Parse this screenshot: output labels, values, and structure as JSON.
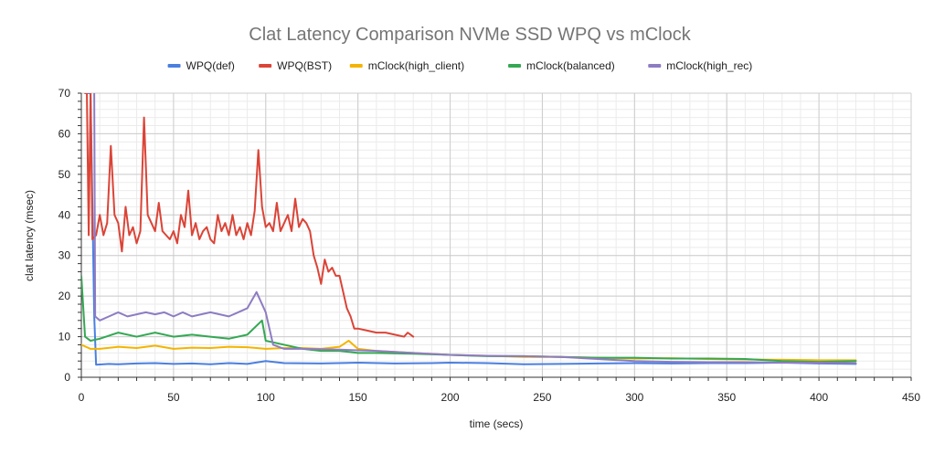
{
  "chart_data": {
    "type": "line",
    "title": "Clat Latency Comparison NVMe SSD WPQ vs mClock",
    "xlabel": "time (secs)",
    "ylabel": "clat latency (msec)",
    "xlim": [
      0,
      450
    ],
    "ylim": [
      0,
      70
    ],
    "xticks": [
      0,
      50,
      100,
      150,
      200,
      250,
      300,
      350,
      400,
      450
    ],
    "yticks": [
      0,
      10,
      20,
      30,
      40,
      50,
      60,
      70
    ],
    "grid": true,
    "legend_position": "top",
    "series": [
      {
        "name": "WPQ(def)",
        "color": "#4a7fe0",
        "points": [
          [
            3,
            70
          ],
          [
            5,
            70
          ],
          [
            7,
            15
          ],
          [
            8,
            3.1
          ],
          [
            15,
            3.3
          ],
          [
            20,
            3.2
          ],
          [
            30,
            3.4
          ],
          [
            40,
            3.5
          ],
          [
            50,
            3.3
          ],
          [
            60,
            3.4
          ],
          [
            70,
            3.2
          ],
          [
            80,
            3.5
          ],
          [
            90,
            3.3
          ],
          [
            100,
            4.0
          ],
          [
            110,
            3.5
          ],
          [
            130,
            3.4
          ],
          [
            150,
            3.6
          ],
          [
            170,
            3.4
          ],
          [
            190,
            3.5
          ],
          [
            200,
            3.6
          ],
          [
            220,
            3.5
          ],
          [
            240,
            3.2
          ],
          [
            260,
            3.3
          ],
          [
            280,
            3.4
          ],
          [
            300,
            3.5
          ],
          [
            320,
            3.4
          ],
          [
            340,
            3.5
          ],
          [
            360,
            3.5
          ],
          [
            380,
            3.6
          ],
          [
            400,
            3.4
          ],
          [
            420,
            3.3
          ]
        ]
      },
      {
        "name": "WPQ(BST)",
        "color": "#db4437",
        "points": [
          [
            2,
            70
          ],
          [
            3,
            70
          ],
          [
            4,
            35
          ],
          [
            5,
            70
          ],
          [
            6,
            34
          ],
          [
            8,
            35
          ],
          [
            10,
            40
          ],
          [
            12,
            35
          ],
          [
            14,
            38
          ],
          [
            16,
            57
          ],
          [
            18,
            40
          ],
          [
            20,
            38
          ],
          [
            22,
            31
          ],
          [
            24,
            42
          ],
          [
            26,
            35
          ],
          [
            28,
            37
          ],
          [
            30,
            33
          ],
          [
            32,
            36
          ],
          [
            34,
            64
          ],
          [
            36,
            40
          ],
          [
            38,
            38
          ],
          [
            40,
            36
          ],
          [
            42,
            43
          ],
          [
            44,
            36
          ],
          [
            46,
            35
          ],
          [
            48,
            34
          ],
          [
            50,
            36
          ],
          [
            52,
            33
          ],
          [
            54,
            40
          ],
          [
            56,
            37
          ],
          [
            58,
            46
          ],
          [
            60,
            35
          ],
          [
            62,
            38
          ],
          [
            64,
            34
          ],
          [
            66,
            36
          ],
          [
            68,
            37
          ],
          [
            70,
            34
          ],
          [
            72,
            33
          ],
          [
            74,
            40
          ],
          [
            76,
            36
          ],
          [
            78,
            38
          ],
          [
            80,
            35
          ],
          [
            82,
            40
          ],
          [
            84,
            35
          ],
          [
            86,
            37
          ],
          [
            88,
            34
          ],
          [
            90,
            38
          ],
          [
            92,
            35
          ],
          [
            94,
            41
          ],
          [
            96,
            56
          ],
          [
            98,
            42
          ],
          [
            100,
            37
          ],
          [
            102,
            38
          ],
          [
            104,
            36
          ],
          [
            106,
            43
          ],
          [
            108,
            36
          ],
          [
            110,
            38
          ],
          [
            112,
            40
          ],
          [
            114,
            36
          ],
          [
            116,
            44
          ],
          [
            118,
            37
          ],
          [
            120,
            39
          ],
          [
            122,
            38
          ],
          [
            124,
            36
          ],
          [
            126,
            30
          ],
          [
            128,
            27
          ],
          [
            130,
            23
          ],
          [
            132,
            29
          ],
          [
            134,
            26
          ],
          [
            136,
            27
          ],
          [
            138,
            25
          ],
          [
            140,
            25
          ],
          [
            142,
            21
          ],
          [
            144,
            17
          ],
          [
            146,
            15
          ],
          [
            148,
            12
          ],
          [
            150,
            12
          ],
          [
            155,
            11.5
          ],
          [
            160,
            11
          ],
          [
            165,
            11
          ],
          [
            170,
            10.5
          ],
          [
            175,
            10
          ],
          [
            177,
            11
          ],
          [
            180,
            10
          ]
        ]
      },
      {
        "name": "mClock(high_client)",
        "color": "#f4b400",
        "points": [
          [
            0,
            8
          ],
          [
            5,
            7
          ],
          [
            10,
            7
          ],
          [
            20,
            7.5
          ],
          [
            30,
            7.2
          ],
          [
            40,
            7.8
          ],
          [
            50,
            7
          ],
          [
            60,
            7.3
          ],
          [
            70,
            7.2
          ],
          [
            80,
            7.5
          ],
          [
            90,
            7.4
          ],
          [
            100,
            7
          ],
          [
            110,
            7.2
          ],
          [
            120,
            7.2
          ],
          [
            130,
            7
          ],
          [
            140,
            7.5
          ],
          [
            145,
            9
          ],
          [
            150,
            7
          ],
          [
            160,
            6.5
          ],
          [
            180,
            6
          ],
          [
            200,
            5.5
          ],
          [
            220,
            5.3
          ],
          [
            240,
            5
          ],
          [
            260,
            5
          ],
          [
            280,
            4.8
          ],
          [
            300,
            4.6
          ],
          [
            320,
            4.7
          ],
          [
            340,
            4.5
          ],
          [
            360,
            4.4
          ],
          [
            380,
            4.3
          ],
          [
            400,
            4.2
          ],
          [
            420,
            4.2
          ]
        ]
      },
      {
        "name": "mClock(balanced)",
        "color": "#34a853",
        "points": [
          [
            0,
            25
          ],
          [
            2,
            10
          ],
          [
            5,
            9
          ],
          [
            10,
            9.5
          ],
          [
            20,
            11
          ],
          [
            30,
            10
          ],
          [
            40,
            11
          ],
          [
            50,
            10
          ],
          [
            60,
            10.5
          ],
          [
            70,
            10
          ],
          [
            80,
            9.5
          ],
          [
            90,
            10.5
          ],
          [
            98,
            14
          ],
          [
            100,
            9
          ],
          [
            110,
            8
          ],
          [
            120,
            7
          ],
          [
            130,
            6.5
          ],
          [
            140,
            6.5
          ],
          [
            150,
            6
          ],
          [
            160,
            6
          ],
          [
            180,
            5.8
          ],
          [
            200,
            5.5
          ],
          [
            220,
            5.2
          ],
          [
            240,
            5.2
          ],
          [
            260,
            5
          ],
          [
            280,
            4.8
          ],
          [
            300,
            4.8
          ],
          [
            320,
            4.6
          ],
          [
            340,
            4.6
          ],
          [
            360,
            4.5
          ],
          [
            380,
            4
          ],
          [
            400,
            3.8
          ],
          [
            420,
            4
          ]
        ]
      },
      {
        "name": "mClock(high_rec)",
        "color": "#8e7cc3",
        "points": [
          [
            7,
            70
          ],
          [
            7.5,
            15
          ],
          [
            10,
            14
          ],
          [
            15,
            15
          ],
          [
            20,
            16
          ],
          [
            25,
            15
          ],
          [
            30,
            15.5
          ],
          [
            35,
            16
          ],
          [
            40,
            15.5
          ],
          [
            45,
            16
          ],
          [
            50,
            15
          ],
          [
            55,
            16
          ],
          [
            60,
            15
          ],
          [
            65,
            15.5
          ],
          [
            70,
            16
          ],
          [
            75,
            15.5
          ],
          [
            80,
            15
          ],
          [
            85,
            16
          ],
          [
            90,
            17
          ],
          [
            95,
            21
          ],
          [
            100,
            16
          ],
          [
            102,
            12
          ],
          [
            104,
            8
          ],
          [
            110,
            7
          ],
          [
            120,
            7
          ],
          [
            140,
            6.8
          ],
          [
            160,
            6.5
          ],
          [
            180,
            6
          ],
          [
            200,
            5.5
          ],
          [
            220,
            5.3
          ],
          [
            240,
            5.2
          ],
          [
            260,
            5
          ],
          [
            280,
            4.5
          ],
          [
            300,
            4
          ],
          [
            320,
            3.8
          ],
          [
            340,
            3.7
          ],
          [
            360,
            3.7
          ],
          [
            380,
            3.6
          ],
          [
            400,
            3.6
          ],
          [
            420,
            3.5
          ]
        ]
      }
    ]
  }
}
